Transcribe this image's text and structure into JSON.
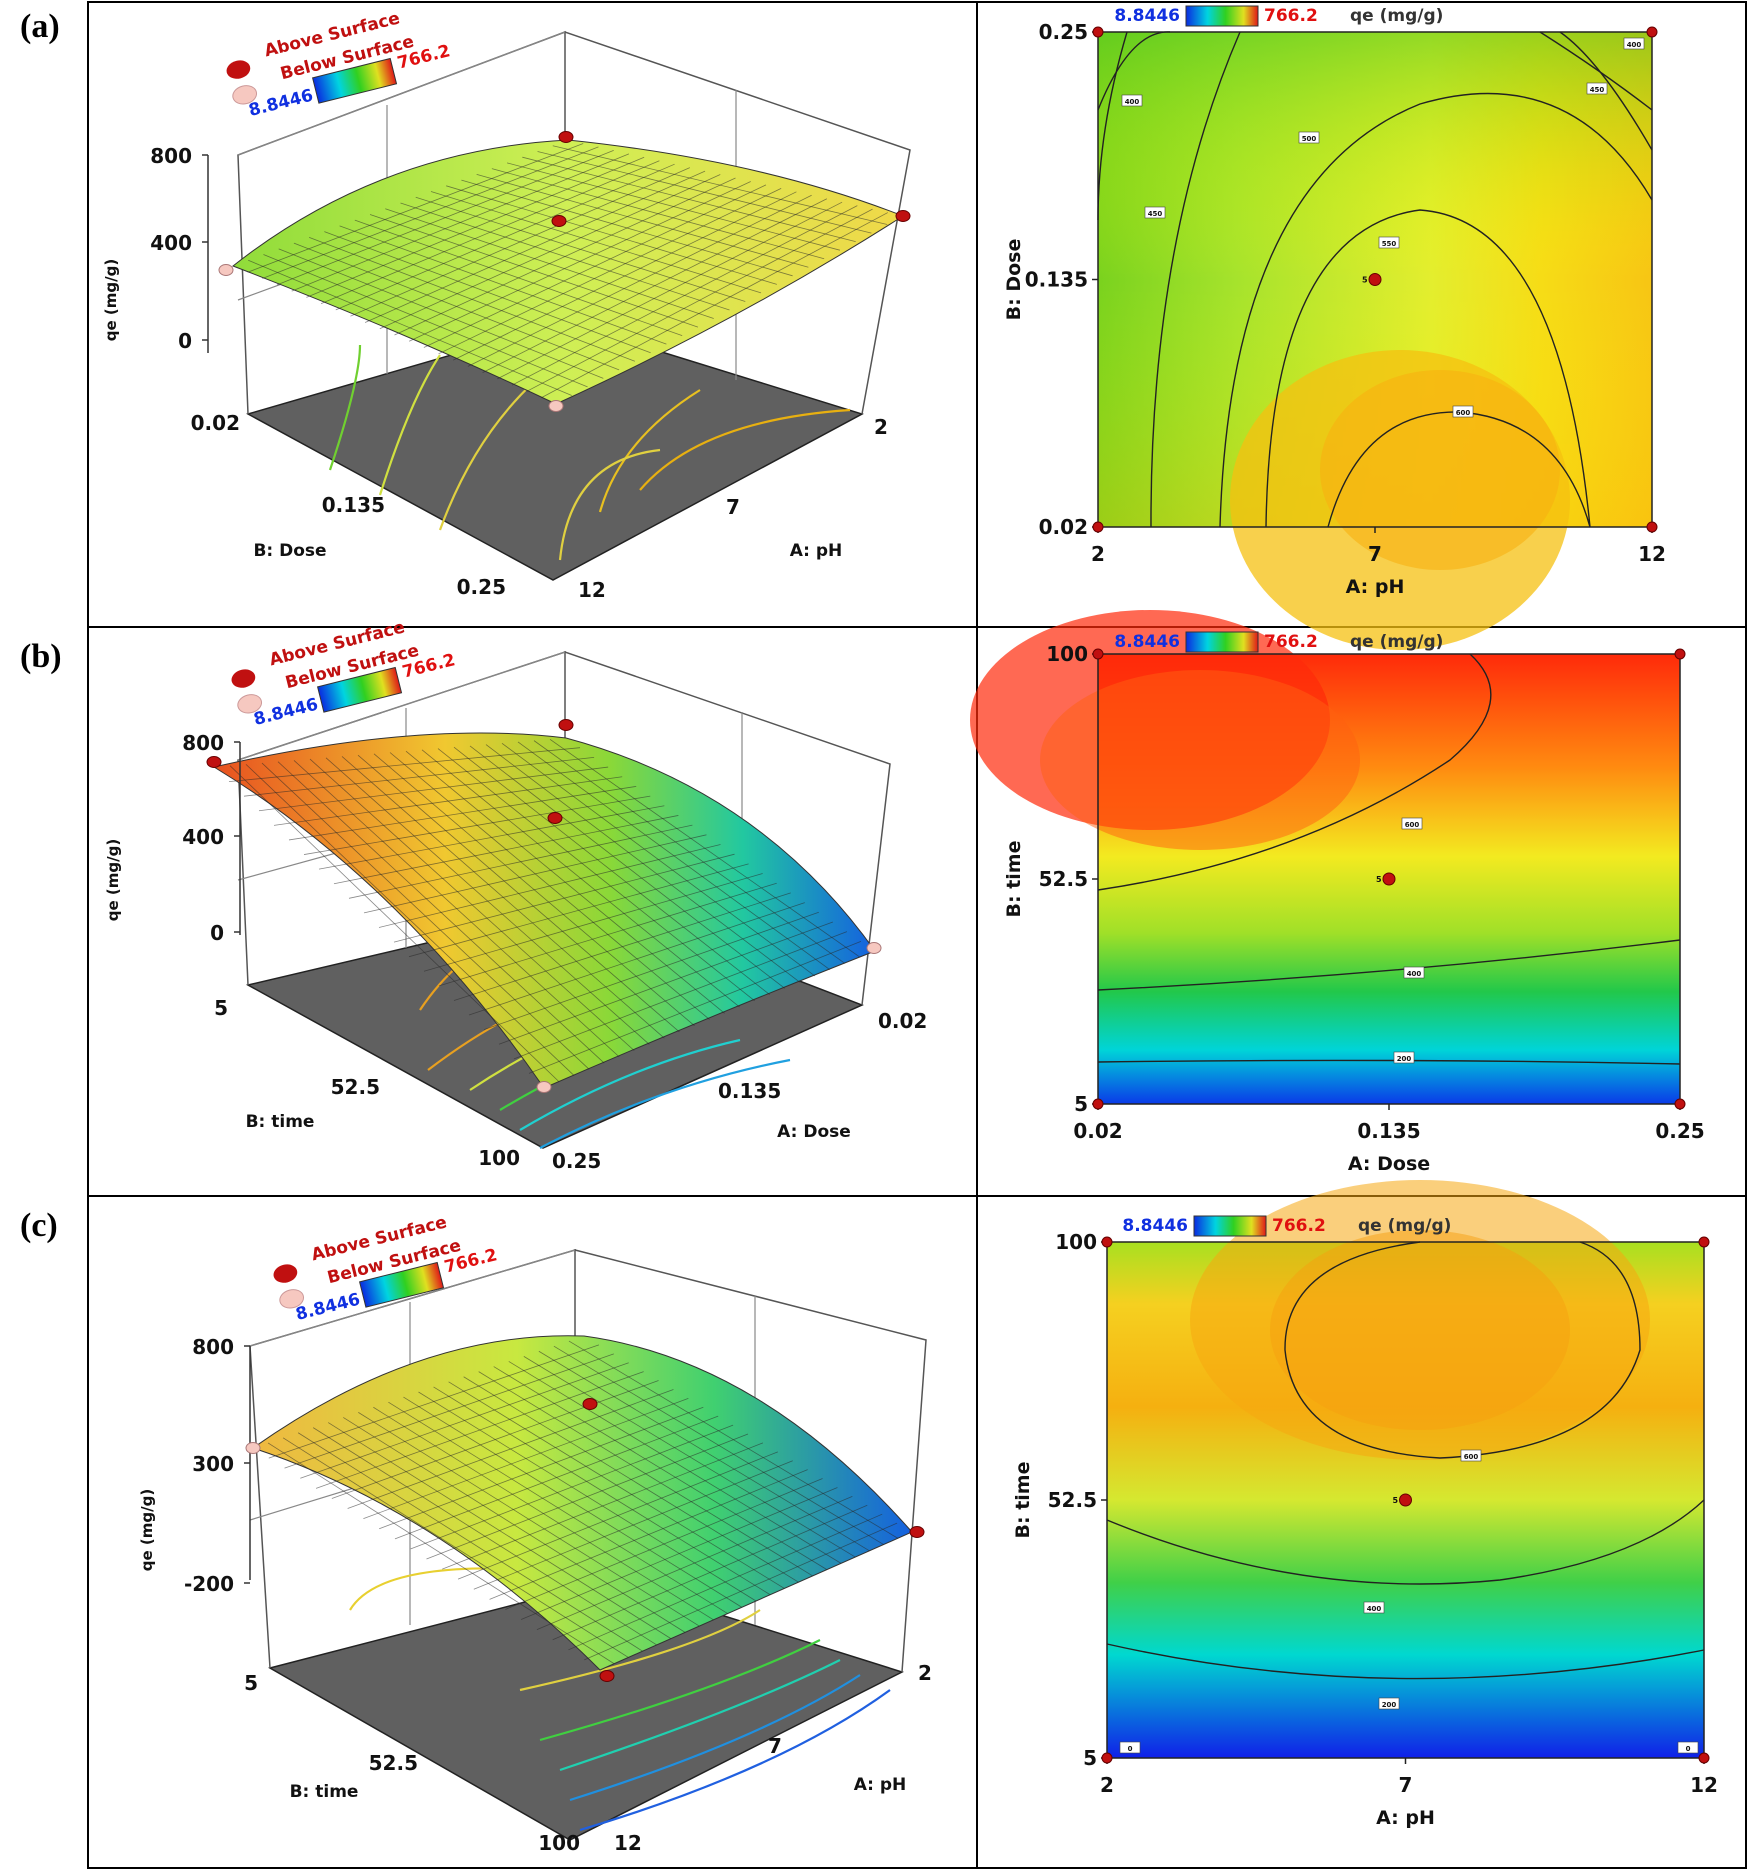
{
  "panels": [
    {
      "label": "(a)",
      "surface": {
        "legend": {
          "above": "Above Surface",
          "below": "Below Surface",
          "min": "8.8446",
          "max": "766.2"
        },
        "z_axis": {
          "label": "qe (mg/g)",
          "ticks": [
            "800",
            "400",
            "0"
          ]
        },
        "x_axis": {
          "label": "A: pH",
          "ticks": [
            "2",
            "7",
            "12"
          ]
        },
        "y_axis": {
          "label": "B: Dose",
          "ticks": [
            "0.02",
            "0.135",
            "0.25"
          ]
        },
        "colors": [
          "#9be22a",
          "#c9ef3c",
          "#f2e64a"
        ]
      },
      "contour": {
        "legend": {
          "min": "8.8446",
          "max": "766.2",
          "response": "qe (mg/g)"
        },
        "x_axis": {
          "label": "A: pH",
          "ticks": [
            "2",
            "7",
            "12"
          ]
        },
        "y_axis": {
          "label": "B: Dose",
          "ticks": [
            "0.02",
            "0.135",
            "0.25"
          ]
        },
        "contour_labels": [
          "400",
          "450",
          "500",
          "550",
          "600",
          "450",
          "400"
        ],
        "center_label": "5"
      }
    },
    {
      "label": "(b)",
      "surface": {
        "legend": {
          "above": "Above Surface",
          "below": "Below Surface",
          "min": "8.8446",
          "max": "766.2"
        },
        "z_axis": {
          "label": "qe (mg/g)",
          "ticks": [
            "800",
            "400",
            "0"
          ]
        },
        "x_axis": {
          "label": "A: Dose",
          "ticks": [
            "0.02",
            "0.135",
            "0.25"
          ]
        },
        "y_axis": {
          "label": "B: time",
          "ticks": [
            "5",
            "52.5",
            "100"
          ]
        },
        "colors": [
          "#e84a1c",
          "#e6e532",
          "#1c8de0"
        ]
      },
      "contour": {
        "legend": {
          "min": "8.8446",
          "max": "766.2",
          "response": "qe (mg/g)"
        },
        "x_axis": {
          "label": "A: Dose",
          "ticks": [
            "0.02",
            "0.135",
            "0.25"
          ]
        },
        "y_axis": {
          "label": "B: time",
          "ticks": [
            "5",
            "52.5",
            "100"
          ]
        },
        "contour_labels": [
          "600",
          "400",
          "200"
        ],
        "center_label": "5"
      }
    },
    {
      "label": "(c)",
      "surface": {
        "legend": {
          "above": "Above Surface",
          "below": "Below Surface",
          "min": "8.8446",
          "max": "766.2"
        },
        "z_axis": {
          "label": "qe (mg/g)",
          "ticks": [
            "800",
            "300",
            "-200"
          ]
        },
        "x_axis": {
          "label": "A: pH",
          "ticks": [
            "2",
            "7",
            "12"
          ]
        },
        "y_axis": {
          "label": "B: time",
          "ticks": [
            "5",
            "52.5",
            "100"
          ]
        },
        "colors": [
          "#f0b43a",
          "#b8e63c",
          "#1c6fe0"
        ]
      },
      "contour": {
        "legend": {
          "min": "8.8446",
          "max": "766.2",
          "response": "qe (mg/g)"
        },
        "x_axis": {
          "label": "A: pH",
          "ticks": [
            "2",
            "7",
            "12"
          ]
        },
        "y_axis": {
          "label": "B: time",
          "ticks": [
            "5",
            "52.5",
            "100"
          ]
        },
        "contour_labels": [
          "600",
          "400",
          "200",
          "0",
          "0"
        ],
        "center_label": "5"
      }
    }
  ],
  "chart_data": [
    {
      "type": "surface",
      "panel": "(a) 3D",
      "title": "",
      "xlabel": "A: pH",
      "ylabel": "B: Dose",
      "zlabel": "qe (mg/g)",
      "xlim": [
        2,
        12
      ],
      "ylim": [
        0.02,
        0.25
      ],
      "zlim": [
        0,
        800
      ],
      "color_range": [
        8.8446,
        766.2
      ],
      "design_points": [
        {
          "x": 7,
          "y": 0.135,
          "z": 540,
          "position": "above"
        },
        {
          "x": 2,
          "y": 0.25,
          "z": 300,
          "position": "below"
        },
        {
          "x": 12,
          "y": 0.25,
          "z": 420,
          "position": "above"
        },
        {
          "x": 2,
          "y": 0.02,
          "z": 350,
          "position": "above"
        },
        {
          "x": 12,
          "y": 0.02,
          "z": 560,
          "position": "below"
        }
      ]
    },
    {
      "type": "contour",
      "panel": "(a) contour",
      "title": "",
      "xlabel": "A: pH",
      "ylabel": "B: Dose",
      "xlim": [
        2,
        12
      ],
      "ylim": [
        0.02,
        0.25
      ],
      "levels": [
        400,
        450,
        500,
        550,
        600
      ],
      "color_range": [
        8.8446,
        766.2
      ],
      "design_points": [
        {
          "x": 7,
          "y": 0.135,
          "label": "5"
        },
        {
          "x": 2,
          "y": 0.25
        },
        {
          "x": 12,
          "y": 0.25
        },
        {
          "x": 2,
          "y": 0.02
        },
        {
          "x": 12,
          "y": 0.02
        }
      ]
    },
    {
      "type": "surface",
      "panel": "(b) 3D",
      "title": "",
      "xlabel": "A: Dose",
      "ylabel": "B: time",
      "zlabel": "qe (mg/g)",
      "xlim": [
        0.02,
        0.25
      ],
      "ylim": [
        5,
        100
      ],
      "zlim": [
        0,
        800
      ],
      "color_range": [
        8.8446,
        766.2
      ],
      "design_points": [
        {
          "x": 0.135,
          "y": 52.5,
          "z": 560,
          "position": "above"
        },
        {
          "x": 0.02,
          "y": 100,
          "z": 700,
          "position": "above"
        },
        {
          "x": 0.25,
          "y": 100,
          "z": 560,
          "position": "above"
        },
        {
          "x": 0.02,
          "y": 5,
          "z": 20,
          "position": "below"
        },
        {
          "x": 0.25,
          "y": 5,
          "z": 10,
          "position": "below"
        }
      ]
    },
    {
      "type": "contour",
      "panel": "(b) contour",
      "title": "",
      "xlabel": "A: Dose",
      "ylabel": "B: time",
      "xlim": [
        0.02,
        0.25
      ],
      "ylim": [
        5,
        100
      ],
      "levels": [
        200,
        400,
        600
      ],
      "color_range": [
        8.8446,
        766.2
      ],
      "design_points": [
        {
          "x": 0.135,
          "y": 52.5,
          "label": "5"
        },
        {
          "x": 0.02,
          "y": 100
        },
        {
          "x": 0.25,
          "y": 100
        },
        {
          "x": 0.02,
          "y": 5
        },
        {
          "x": 0.25,
          "y": 5
        }
      ]
    },
    {
      "type": "surface",
      "panel": "(c) 3D",
      "title": "",
      "xlabel": "A: pH",
      "ylabel": "B: time",
      "zlabel": "qe (mg/g)",
      "xlim": [
        2,
        12
      ],
      "ylim": [
        5,
        100
      ],
      "zlim": [
        -200,
        800
      ],
      "color_range": [
        8.8446,
        766.2
      ],
      "design_points": [
        {
          "x": 7,
          "y": 52.5,
          "z": 560,
          "position": "above"
        },
        {
          "x": 2,
          "y": 100,
          "z": 400,
          "position": "below"
        },
        {
          "x": 12,
          "y": 100,
          "z": 250,
          "position": "above"
        },
        {
          "x": 2,
          "y": 5,
          "z": 20,
          "position": "above"
        },
        {
          "x": 12,
          "y": 5,
          "z": -50,
          "position": "above"
        }
      ]
    },
    {
      "type": "contour",
      "panel": "(c) contour",
      "title": "",
      "xlabel": "A: pH",
      "ylabel": "B: time",
      "xlim": [
        2,
        12
      ],
      "ylim": [
        5,
        100
      ],
      "levels": [
        0,
        200,
        400,
        600
      ],
      "color_range": [
        8.8446,
        766.2
      ],
      "design_points": [
        {
          "x": 7,
          "y": 52.5,
          "label": "5"
        },
        {
          "x": 2,
          "y": 100
        },
        {
          "x": 12,
          "y": 100
        },
        {
          "x": 2,
          "y": 5
        },
        {
          "x": 12,
          "y": 5
        }
      ]
    }
  ]
}
